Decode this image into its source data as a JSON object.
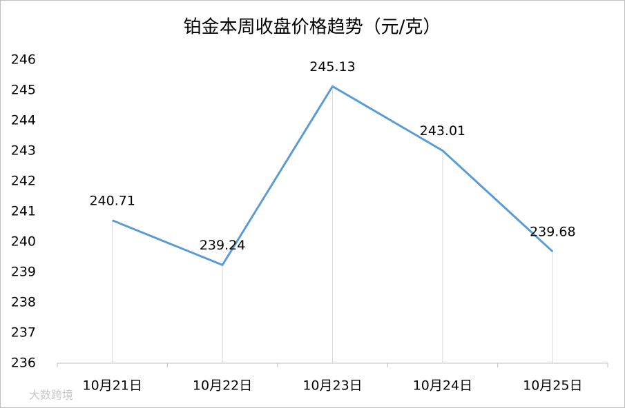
{
  "chart_data": {
    "type": "line",
    "title": "铂金本周收盘价格趋势（元/克）",
    "categories": [
      "10月21日",
      "10月22日",
      "10月23日",
      "10月24日",
      "10月25日"
    ],
    "values": [
      240.71,
      239.24,
      245.13,
      243.01,
      239.68
    ],
    "color": "#5b9bd5",
    "ylim": [
      236,
      246
    ],
    "yticks": [
      236,
      237,
      238,
      239,
      240,
      241,
      242,
      243,
      244,
      245,
      246
    ],
    "drop_lines": true,
    "data_labels": true,
    "watermark": "大数跨境"
  }
}
